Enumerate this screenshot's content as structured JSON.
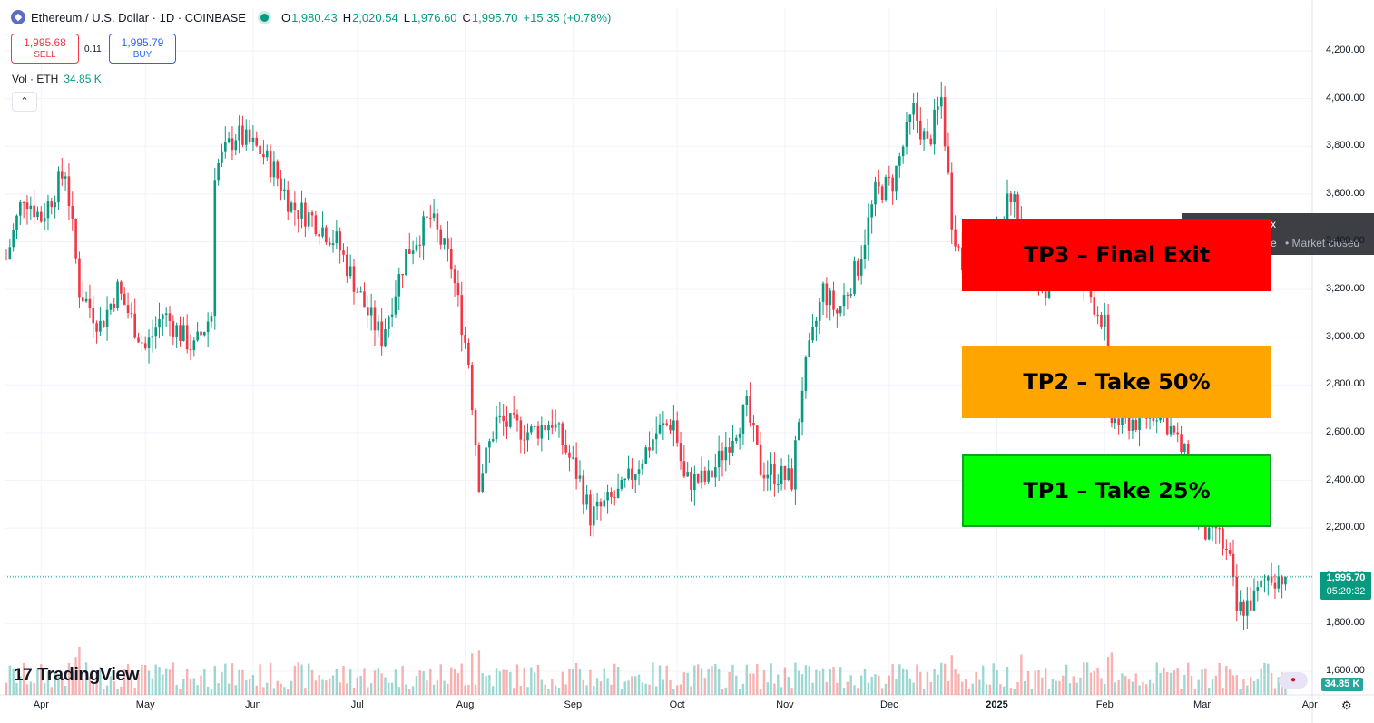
{
  "header": {
    "symbol_title": "Ethereum / U.S. Dollar · 1D · COINBASE",
    "ohlc": [
      {
        "label": "O",
        "value": "1,980.43"
      },
      {
        "label": "H",
        "value": "2,020.54"
      },
      {
        "label": "L",
        "value": "1,976.60"
      },
      {
        "label": "C",
        "value": "1,995.70"
      }
    ],
    "change": "+15.35 (+0.78%)",
    "logo_glyph": "◆"
  },
  "trade": {
    "sell_price": "1,995.68",
    "sell_label": "SELL",
    "spread": "0.11",
    "buy_price": "1,995.79",
    "buy_label": "BUY"
  },
  "volume": {
    "label": "Vol · ETH",
    "value": "34.85 K",
    "tag": "34.85 K"
  },
  "collapse_glyph": "⌃",
  "market_status": {
    "fragment_top": "x",
    "fragment_left": "e",
    "text": "• Market closed"
  },
  "targets": {
    "tp3": "TP3 – Final Exit",
    "tp2": "TP2 – Take 50%",
    "tp1": "TP1 – Take 25%"
  },
  "last_price": {
    "price": "1,995.70",
    "countdown": "05:20:32"
  },
  "branding": {
    "logo_mark": "17",
    "logo_text": "TradingView"
  },
  "icons": {
    "settings": "gear-icon",
    "flag": "flag-icon"
  },
  "colors": {
    "up": "#089981",
    "down": "#f23645",
    "tp3": "#ff0000",
    "tp2": "#ffa500",
    "tp1": "#00ff00"
  },
  "chart_data": {
    "type": "candlestick",
    "price_axis": [
      "4,200.00",
      "4,000.00",
      "3,800.00",
      "3,600.00",
      "3,400.00",
      "3,200.00",
      "3,000.00",
      "2,800.00",
      "2,600.00",
      "2,400.00",
      "2,200.00",
      "2,000.00",
      "1,800.00",
      "1,600.00"
    ],
    "price_axis_values": [
      4200,
      4000,
      3800,
      3600,
      3400,
      3200,
      3000,
      2800,
      2600,
      2400,
      2200,
      2000,
      1800,
      1600
    ],
    "ylim": [
      1530,
      4330
    ],
    "time_axis": [
      {
        "label": "Apr",
        "date": "2024-04-01"
      },
      {
        "label": "May",
        "date": "2024-05-01"
      },
      {
        "label": "Jun",
        "date": "2024-06-01"
      },
      {
        "label": "Jul",
        "date": "2024-07-01"
      },
      {
        "label": "Aug",
        "date": "2024-08-01"
      },
      {
        "label": "Sep",
        "date": "2024-09-01"
      },
      {
        "label": "Oct",
        "date": "2024-10-01"
      },
      {
        "label": "Nov",
        "date": "2024-11-01"
      },
      {
        "label": "Dec",
        "date": "2024-12-01"
      },
      {
        "label": "2025",
        "date": "2025-01-01",
        "bold": true
      },
      {
        "label": "Feb",
        "date": "2025-02-01"
      },
      {
        "label": "Mar",
        "date": "2025-03-01"
      },
      {
        "label": "Apr",
        "date": "2025-04-01"
      }
    ],
    "start_date": "2024-03-22",
    "end_date": "2025-03-25",
    "series_close": [
      {
        "date": "2024-03-22",
        "close": 3330
      },
      {
        "date": "2024-03-27",
        "close": 3600
      },
      {
        "date": "2024-04-01",
        "close": 3500
      },
      {
        "date": "2024-04-08",
        "close": 3700
      },
      {
        "date": "2024-04-12",
        "close": 3200
      },
      {
        "date": "2024-04-18",
        "close": 3050
      },
      {
        "date": "2024-04-23",
        "close": 3200
      },
      {
        "date": "2024-05-01",
        "close": 2950
      },
      {
        "date": "2024-05-06",
        "close": 3100
      },
      {
        "date": "2024-05-15",
        "close": 2950
      },
      {
        "date": "2024-05-20",
        "close": 3100
      },
      {
        "date": "2024-05-21",
        "close": 3700
      },
      {
        "date": "2024-05-27",
        "close": 3850
      },
      {
        "date": "2024-06-03",
        "close": 3780
      },
      {
        "date": "2024-06-07",
        "close": 3700
      },
      {
        "date": "2024-06-12",
        "close": 3550
      },
      {
        "date": "2024-06-18",
        "close": 3500
      },
      {
        "date": "2024-06-25",
        "close": 3400
      },
      {
        "date": "2024-07-04",
        "close": 3100
      },
      {
        "date": "2024-07-08",
        "close": 3000
      },
      {
        "date": "2024-07-15",
        "close": 3350
      },
      {
        "date": "2024-07-22",
        "close": 3500
      },
      {
        "date": "2024-07-28",
        "close": 3300
      },
      {
        "date": "2024-08-02",
        "close": 2900
      },
      {
        "date": "2024-08-05",
        "close": 2400
      },
      {
        "date": "2024-08-10",
        "close": 2650
      },
      {
        "date": "2024-08-20",
        "close": 2600
      },
      {
        "date": "2024-08-26",
        "close": 2650
      },
      {
        "date": "2024-09-03",
        "close": 2400
      },
      {
        "date": "2024-09-06",
        "close": 2250
      },
      {
        "date": "2024-09-15",
        "close": 2350
      },
      {
        "date": "2024-09-25",
        "close": 2600
      },
      {
        "date": "2024-09-30",
        "close": 2650
      },
      {
        "date": "2024-10-03",
        "close": 2400
      },
      {
        "date": "2024-10-10",
        "close": 2400
      },
      {
        "date": "2024-10-17",
        "close": 2600
      },
      {
        "date": "2024-10-21",
        "close": 2700
      },
      {
        "date": "2024-10-25",
        "close": 2450
      },
      {
        "date": "2024-11-03",
        "close": 2400
      },
      {
        "date": "2024-11-06",
        "close": 2800
      },
      {
        "date": "2024-11-12",
        "close": 3200
      },
      {
        "date": "2024-11-16",
        "close": 3100
      },
      {
        "date": "2024-11-22",
        "close": 3300
      },
      {
        "date": "2024-11-27",
        "close": 3600
      },
      {
        "date": "2024-12-02",
        "close": 3650
      },
      {
        "date": "2024-12-08",
        "close": 3950
      },
      {
        "date": "2024-12-12",
        "close": 3800
      },
      {
        "date": "2024-12-16",
        "close": 4000
      },
      {
        "date": "2024-12-19",
        "close": 3500
      },
      {
        "date": "2024-12-22",
        "close": 3300
      },
      {
        "date": "2024-12-31",
        "close": 3350
      },
      {
        "date": "2025-01-06",
        "close": 3650
      },
      {
        "date": "2025-01-08",
        "close": 3300
      },
      {
        "date": "2025-01-14",
        "close": 3200
      },
      {
        "date": "2025-01-20",
        "close": 3300
      },
      {
        "date": "2025-01-27",
        "close": 3200
      },
      {
        "date": "2025-02-01",
        "close": 3050
      },
      {
        "date": "2025-02-03",
        "close": 2650
      },
      {
        "date": "2025-02-10",
        "close": 2650
      },
      {
        "date": "2025-02-17",
        "close": 2700
      },
      {
        "date": "2025-02-24",
        "close": 2500
      },
      {
        "date": "2025-02-26",
        "close": 2300
      },
      {
        "date": "2025-03-03",
        "close": 2150
      },
      {
        "date": "2025-03-05",
        "close": 2200
      },
      {
        "date": "2025-03-09",
        "close": 2050
      },
      {
        "date": "2025-03-11",
        "close": 1850
      },
      {
        "date": "2025-03-16",
        "close": 1900
      },
      {
        "date": "2025-03-20",
        "close": 2000
      },
      {
        "date": "2025-03-25",
        "close": 1995.7
      }
    ],
    "last_price": 1995.7
  }
}
